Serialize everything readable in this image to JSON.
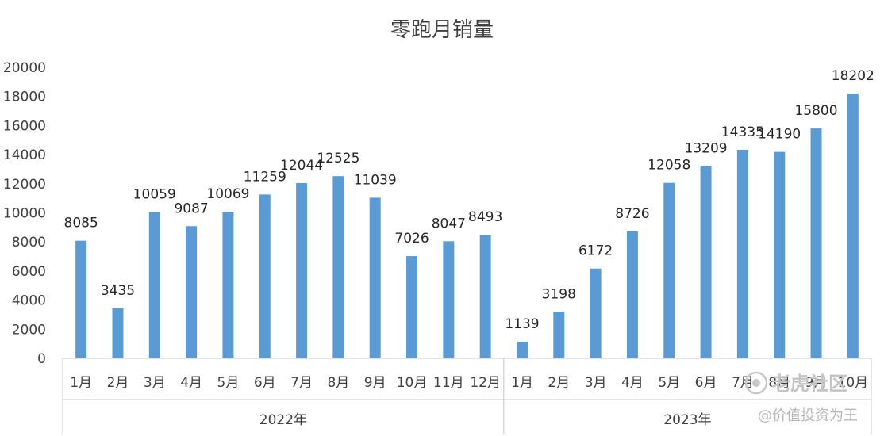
{
  "chart_data": {
    "type": "bar",
    "title": "零跑月销量",
    "xlabel": "",
    "ylabel": "",
    "ylim": [
      0,
      20000
    ],
    "yticks": [
      0,
      2000,
      4000,
      6000,
      8000,
      10000,
      12000,
      14000,
      16000,
      18000,
      20000
    ],
    "grid": false,
    "bar_color": "#5b9bd5",
    "groups": [
      {
        "label": "2022年",
        "categories": [
          "1月",
          "2月",
          "3月",
          "4月",
          "5月",
          "6月",
          "7月",
          "8月",
          "9月",
          "10月",
          "11月",
          "12月"
        ],
        "values": [
          8085,
          3435,
          10059,
          9087,
          10069,
          11259,
          12044,
          12525,
          11039,
          7026,
          8047,
          8493
        ]
      },
      {
        "label": "2023年",
        "categories": [
          "1月",
          "2月",
          "3月",
          "4月",
          "5月",
          "6月",
          "7月",
          "8月",
          "9月",
          "10月"
        ],
        "values": [
          1139,
          3198,
          6172,
          8726,
          12058,
          13209,
          14335,
          14190,
          15800,
          18202
        ]
      }
    ]
  },
  "watermark": {
    "logo_text": "老虎社区",
    "author_text": "@价值投资为王"
  }
}
